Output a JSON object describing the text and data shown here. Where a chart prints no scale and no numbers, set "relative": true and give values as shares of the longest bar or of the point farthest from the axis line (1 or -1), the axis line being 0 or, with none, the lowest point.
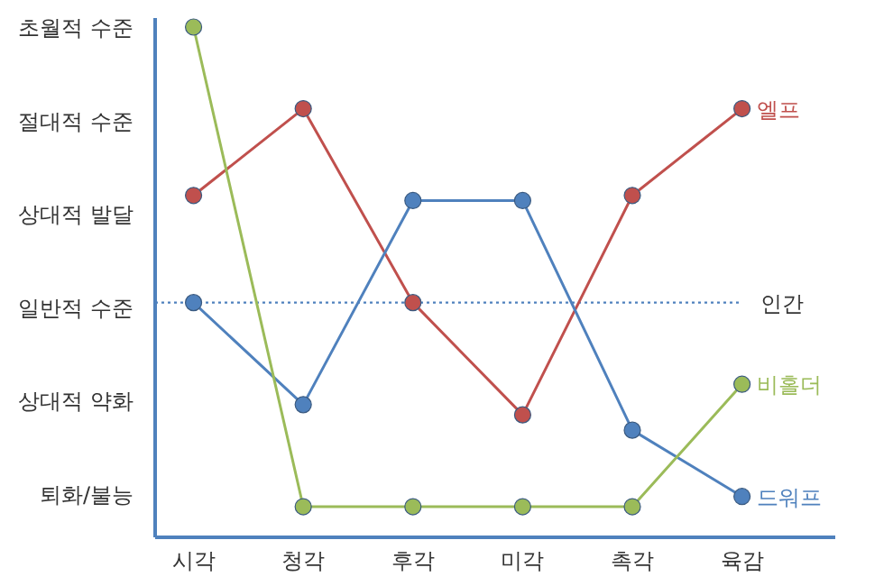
{
  "chart_data": {
    "type": "line",
    "categories": [
      "시각",
      "청각",
      "후각",
      "미각",
      "촉각",
      "육감"
    ],
    "relative": true,
    "marker": "circle",
    "series": [
      {
        "name": "엘프",
        "color": "#c0504d",
        "values": [
          0.67,
          0.84,
          0.46,
          0.24,
          0.67,
          0.84
        ]
      },
      {
        "name": "드워프",
        "color": "#4f81bd",
        "values": [
          0.46,
          0.26,
          0.66,
          0.66,
          0.21,
          0.08
        ]
      },
      {
        "name": "비홀더",
        "color": "#9bbb59",
        "values": [
          1,
          0.06,
          0.06,
          0.06,
          0.06,
          0.3
        ]
      }
    ],
    "annotations": [
      "초월적 수준",
      "절대적 수준",
      "상대적 발달",
      "일반적 수준",
      "상대적 약화",
      "퇴화/불능"
    ],
    "ref_lines": [
      {
        "axis": "y",
        "value": 0.46,
        "label": "인간",
        "color": "#4f81bd",
        "line_style": "dotted"
      }
    ]
  }
}
